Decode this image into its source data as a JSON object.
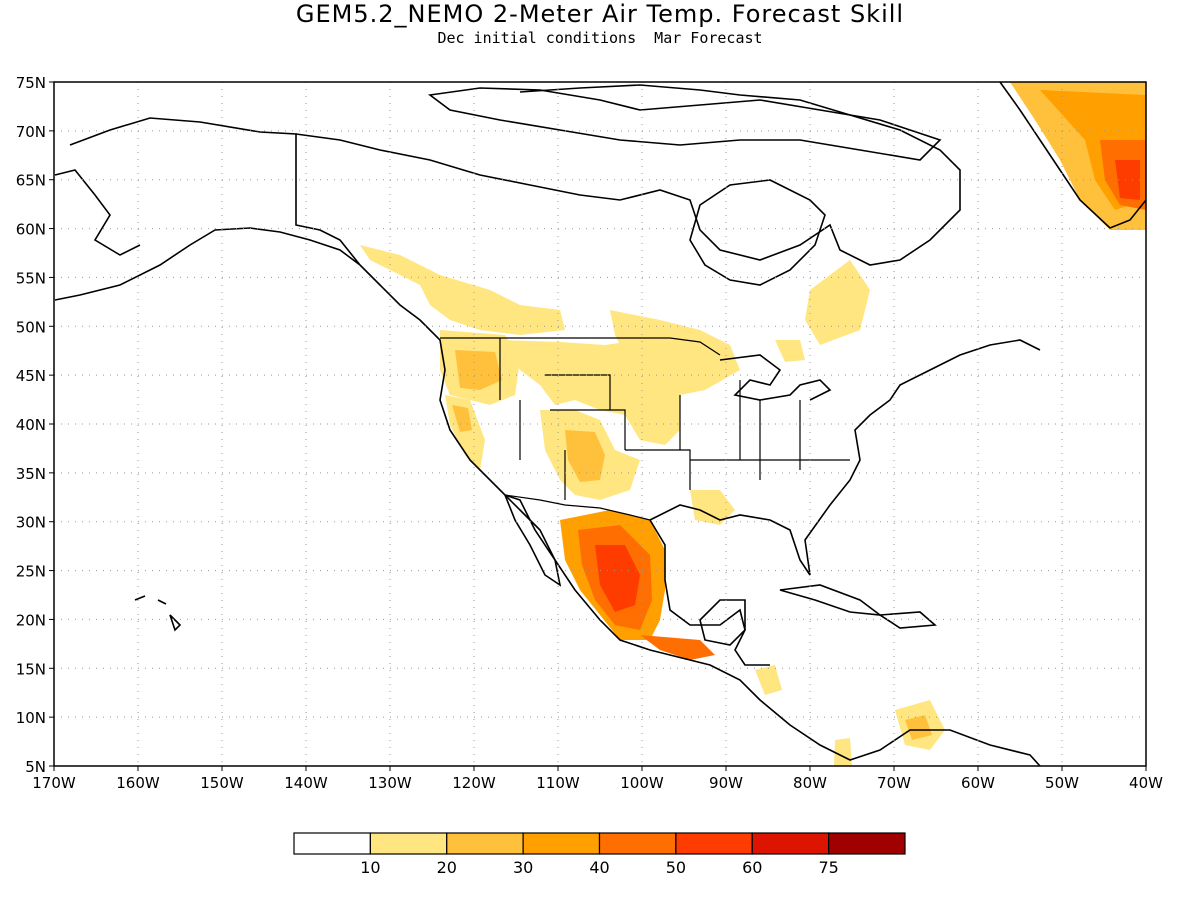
{
  "title": "GEM5.2_NEMO 2-Meter Air Temp. Forecast Skill",
  "subtitle": "Dec initial conditions  Mar Forecast",
  "map": {
    "lon_range": [
      -170,
      -40
    ],
    "lat_range": [
      5,
      75
    ],
    "lat_ticks": [
      "75N",
      "70N",
      "65N",
      "60N",
      "55N",
      "50N",
      "45N",
      "40N",
      "35N",
      "30N",
      "25N",
      "20N",
      "15N",
      "10N",
      "5N"
    ],
    "lon_ticks": [
      "170W",
      "160W",
      "150W",
      "140W",
      "130W",
      "120W",
      "110W",
      "100W",
      "90W",
      "80W",
      "70W",
      "60W",
      "50W",
      "40W"
    ],
    "grid": true,
    "grid_style": "dotted",
    "land_outline_color": "#000000",
    "ocean_color": "#ffffff"
  },
  "colorbar": {
    "labels": [
      "10",
      "20",
      "30",
      "40",
      "50",
      "60",
      "75"
    ],
    "colors": [
      "#ffffff",
      "#ffe680",
      "#ffc13c",
      "#ffa000",
      "#ff6e00",
      "#ff3c00",
      "#dc1400",
      "#a00000"
    ]
  },
  "skill_regions": [
    {
      "name": "Pacific NW / BC",
      "level": 1
    },
    {
      "name": "Northern Plains",
      "level": 1
    },
    {
      "name": "Southwest US",
      "level": 2
    },
    {
      "name": "Northern Mexico",
      "level": 4
    },
    {
      "name": "Central Mexico",
      "level": 5
    },
    {
      "name": "Southern Greenland",
      "level": 5
    },
    {
      "name": "Quebec / Labrador",
      "level": 1
    },
    {
      "name": "Lower Mississippi",
      "level": 1
    },
    {
      "name": "Venezuela",
      "level": 2
    }
  ]
}
